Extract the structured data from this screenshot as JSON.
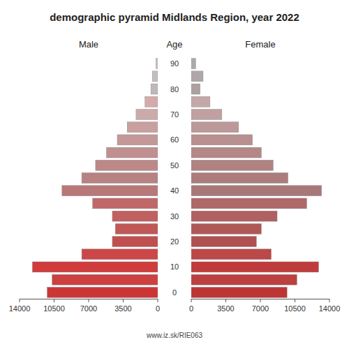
{
  "chart_data": {
    "type": "bar",
    "orientation": "horizontal",
    "title": "demographic pyramid Midlands Region, year 2022",
    "ylabel": "Age",
    "categories": [
      "90",
      null,
      "80",
      null,
      "70",
      null,
      "60",
      null,
      "50",
      null,
      "40",
      null,
      "30",
      null,
      "20",
      null,
      "10",
      null,
      "0"
    ],
    "series": [
      {
        "name": "Male",
        "values": [
          200,
          550,
          700,
          1300,
          2200,
          3100,
          4100,
          5200,
          6300,
          7700,
          9700,
          6600,
          4600,
          4300,
          4600,
          7700,
          12700,
          10700,
          11200
        ],
        "colors": [
          "#c8c8c8",
          "#c4bebe",
          "#c0b8b8",
          "#d4aaaa",
          "#ccaaaa",
          "#c8a0a0",
          "#c49898",
          "#c09090",
          "#bc8888",
          "#b88282",
          "#b87878",
          "#c06868",
          "#c06060",
          "#c05858",
          "#c05050",
          "#cc4848",
          "#d03c3c",
          "#cc4040",
          "#cc3535"
        ]
      },
      {
        "name": "Female",
        "values": [
          450,
          1200,
          900,
          1900,
          3100,
          4800,
          6200,
          7100,
          8300,
          9800,
          13200,
          11700,
          8700,
          7100,
          6600,
          8100,
          12900,
          10700,
          9700
        ],
        "colors": [
          "#aaaaaa",
          "#b0a8a8",
          "#aca0a0",
          "#c4a8a8",
          "#c0a0a0",
          "#bc9898",
          "#b89090",
          "#b48888",
          "#b08282",
          "#ac7c7c",
          "#a87878",
          "#b06868",
          "#b06060",
          "#b05858",
          "#b05050",
          "#bc4848",
          "#c03c3c",
          "#bc4040",
          "#bc3535"
        ]
      }
    ],
    "xlim": [
      0,
      14000
    ],
    "xticks": [
      0,
      3500,
      7000,
      10500,
      14000
    ],
    "grid": false,
    "annotations": [
      {
        "text": "www.iz.sk/RIE063"
      }
    ]
  }
}
